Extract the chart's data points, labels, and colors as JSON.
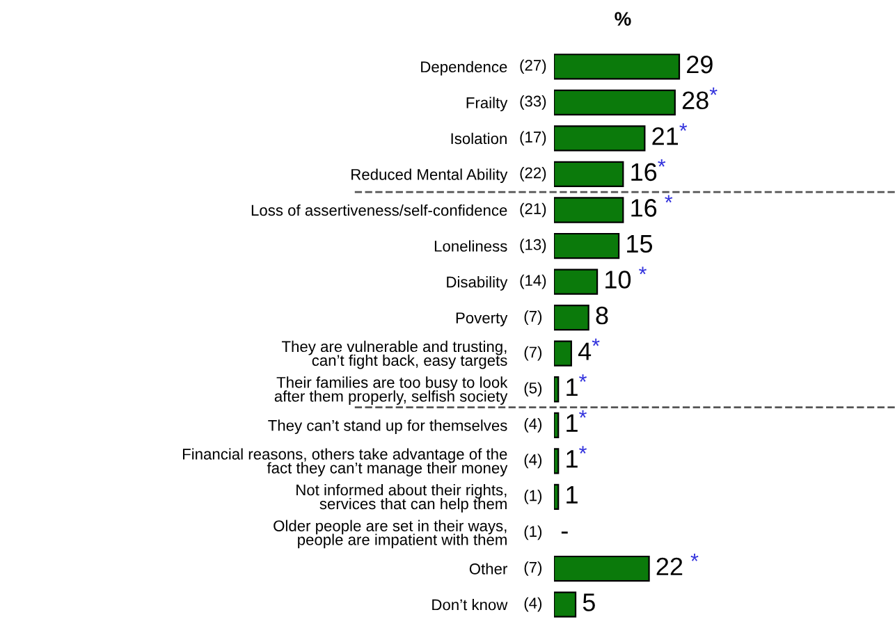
{
  "chart_data": {
    "type": "bar",
    "orientation": "horizontal",
    "title": "%",
    "categories": [
      "Dependence",
      "Frailty",
      "Isolation",
      "Reduced Mental Ability",
      "Loss of assertiveness/self-confidence",
      "Loneliness",
      "Disability",
      "Poverty",
      "They are vulnerable and trusting,\ncan’t fight back, easy targets",
      "Their families are too busy to look\nafter them properly, selfish society",
      "They can’t stand up for themselves",
      "Financial reasons, others take advantage of the\nfact they can’t manage their money",
      "Not informed about their rights,\nservices that can help them",
      "Older people are set in their ways,\npeople are impatient with them",
      "Other",
      "Don’t know"
    ],
    "values": [
      29,
      28,
      21,
      16,
      16,
      15,
      10,
      8,
      4,
      1,
      1,
      1,
      1,
      0,
      22,
      5
    ],
    "value_labels": [
      "29",
      "28*",
      "21*",
      "16*",
      "16 *",
      "15",
      "10 *",
      "8",
      "4*",
      "1*",
      "1*",
      "1*",
      "1",
      "-",
      "22 *",
      "5"
    ],
    "color": "#0b7a0b",
    "annotations": [
      "(27)",
      "(33)",
      "(17)",
      "(22)",
      "(21)",
      "(13)",
      "(14)",
      "(7)",
      "(7)",
      "(5)",
      "(4)",
      "(4)",
      "(1)",
      "(1)",
      "(7)",
      "(4)"
    ],
    "grid": false,
    "legend": false
  }
}
